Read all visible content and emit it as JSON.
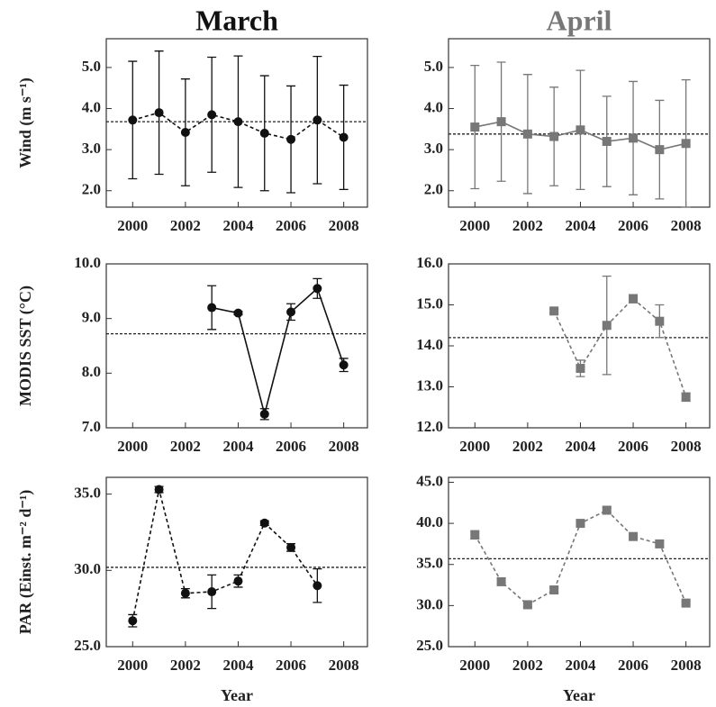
{
  "chart_data": [
    {
      "type": "line",
      "title": "March",
      "ylabel": "Wind (m s⁻¹)",
      "color": "#111111",
      "marker": "circle",
      "linestyle": "dashed",
      "x": [
        2000,
        2001,
        2002,
        2003,
        2004,
        2005,
        2006,
        2007,
        2008
      ],
      "values": [
        3.72,
        3.9,
        3.42,
        3.85,
        3.68,
        3.4,
        3.25,
        3.72,
        3.3
      ],
      "errors": [
        1.43,
        1.5,
        1.3,
        1.4,
        1.6,
        1.4,
        1.3,
        1.55,
        1.27
      ],
      "reference_line": 3.68,
      "xlim": [
        1999,
        2008.9
      ],
      "xticks": [
        2000,
        2002,
        2004,
        2006,
        2008
      ],
      "ylim": [
        1.6,
        5.7
      ],
      "yticks": [
        {
          "value": 2,
          "label": "2.0"
        },
        {
          "value": 3,
          "label": "3.0"
        },
        {
          "value": 4,
          "label": "4.0"
        },
        {
          "value": 5,
          "label": "5.0"
        }
      ]
    },
    {
      "type": "line",
      "title": "April",
      "color": "#777777",
      "marker": "square",
      "linestyle": "solid",
      "x": [
        2000,
        2001,
        2002,
        2003,
        2004,
        2005,
        2006,
        2007,
        2008
      ],
      "values": [
        3.55,
        3.68,
        3.38,
        3.32,
        3.48,
        3.2,
        3.28,
        3.0,
        3.15
      ],
      "errors": [
        1.5,
        1.45,
        1.45,
        1.2,
        1.45,
        1.1,
        1.38,
        1.2,
        1.55
      ],
      "reference_line": 3.38,
      "xlim": [
        1999,
        2008.9
      ],
      "xticks": [
        2000,
        2002,
        2004,
        2006,
        2008
      ],
      "ylim": [
        1.6,
        5.7
      ],
      "yticks": [
        {
          "value": 2,
          "label": "2.0"
        },
        {
          "value": 3,
          "label": "3.0"
        },
        {
          "value": 4,
          "label": "4.0"
        },
        {
          "value": 5,
          "label": "5.0"
        }
      ]
    },
    {
      "type": "line",
      "ylabel": "MODIS SST (°C)",
      "color": "#111111",
      "marker": "circle",
      "linestyle": "solid",
      "x": [
        2000,
        2001,
        2002,
        2003,
        2004,
        2005,
        2006,
        2007,
        2008
      ],
      "values": [
        null,
        null,
        null,
        9.2,
        9.1,
        7.25,
        9.12,
        9.55,
        8.15
      ],
      "errors": [
        null,
        null,
        null,
        0.4,
        0.03,
        0.1,
        0.15,
        0.18,
        0.12
      ],
      "reference_line": 8.72,
      "xlim": [
        1999,
        2008.9
      ],
      "xticks": [
        2000,
        2002,
        2004,
        2006,
        2008
      ],
      "ylim": [
        7,
        10
      ],
      "yticks": [
        {
          "value": 7,
          "label": "7.0"
        },
        {
          "value": 8,
          "label": "8.0"
        },
        {
          "value": 9,
          "label": "9.0"
        },
        {
          "value": 10,
          "label": "10.0"
        }
      ]
    },
    {
      "type": "line",
      "color": "#777777",
      "marker": "square",
      "linestyle": "dashed",
      "x": [
        2000,
        2001,
        2002,
        2003,
        2004,
        2005,
        2006,
        2007,
        2008
      ],
      "values": [
        null,
        null,
        null,
        14.85,
        13.45,
        14.5,
        15.15,
        14.6,
        12.75
      ],
      "errors": [
        null,
        null,
        null,
        0.05,
        0.2,
        1.2,
        0.1,
        0.4,
        0.1
      ],
      "reference_line": 14.2,
      "xlim": [
        1999,
        2008.9
      ],
      "xticks": [
        2000,
        2002,
        2004,
        2006,
        2008
      ],
      "ylim": [
        12,
        16
      ],
      "yticks": [
        {
          "value": 12,
          "label": "12.0"
        },
        {
          "value": 13,
          "label": "13.0"
        },
        {
          "value": 14,
          "label": "14.0"
        },
        {
          "value": 15,
          "label": "15.0"
        },
        {
          "value": 16,
          "label": "16.0"
        }
      ]
    },
    {
      "type": "line",
      "ylabel": "PAR (Einst. m⁻² d⁻¹)",
      "xlabel": "Year",
      "color": "#111111",
      "marker": "circle",
      "linestyle": "dashed",
      "x": [
        2000,
        2001,
        2002,
        2003,
        2004,
        2005,
        2006,
        2007,
        2008
      ],
      "values": [
        26.7,
        35.3,
        28.5,
        28.6,
        29.3,
        33.1,
        31.5,
        29.0,
        null
      ],
      "errors": [
        0.4,
        0.2,
        0.3,
        1.1,
        0.4,
        0.15,
        0.25,
        1.1,
        null
      ],
      "reference_line": 30.2,
      "xlim": [
        1999,
        2008.9
      ],
      "xticks": [
        2000,
        2002,
        2004,
        2006,
        2008
      ],
      "ylim": [
        25,
        36.1
      ],
      "yticks": [
        {
          "value": 25,
          "label": "25.0"
        },
        {
          "value": 30,
          "label": "30.0"
        },
        {
          "value": 35,
          "label": "35.0"
        }
      ]
    },
    {
      "type": "line",
      "xlabel": "Year",
      "color": "#777777",
      "marker": "square",
      "linestyle": "dashed",
      "x": [
        2000,
        2001,
        2002,
        2003,
        2004,
        2005,
        2006,
        2007,
        2008
      ],
      "values": [
        38.6,
        32.9,
        30.1,
        31.9,
        40.0,
        41.6,
        38.4,
        37.5,
        30.3
      ],
      "errors": [
        0.5,
        0.4,
        0.3,
        0.3,
        0.3,
        0.4,
        0.3,
        0.3,
        0.2
      ],
      "reference_line": 35.7,
      "xlim": [
        1999,
        2008.9
      ],
      "xticks": [
        2000,
        2002,
        2004,
        2006,
        2008
      ],
      "ylim": [
        25,
        45.6
      ],
      "yticks": [
        {
          "value": 25,
          "label": "25.0"
        },
        {
          "value": 30,
          "label": "30.0"
        },
        {
          "value": 35,
          "label": "35.0"
        },
        {
          "value": 40,
          "label": "40.0"
        },
        {
          "value": 45,
          "label": "45.0"
        }
      ]
    }
  ]
}
